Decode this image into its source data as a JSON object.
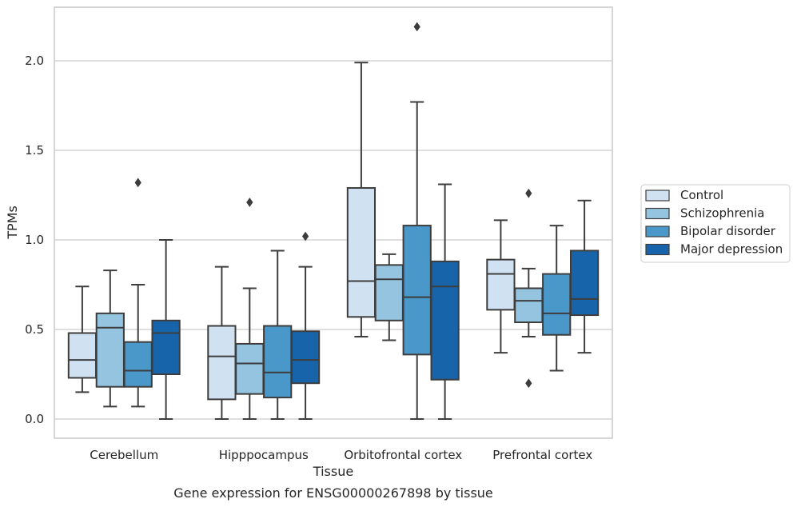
{
  "chart_data": {
    "type": "boxplot",
    "title": "Gene expression for ENSG00000267898 by tissue",
    "xlabel": "Tissue",
    "ylabel": "TPMs",
    "ylim": [
      -0.1,
      2.3
    ],
    "yticks": [
      0.0,
      0.5,
      1.0,
      1.5,
      2.0
    ],
    "ytick_labels": [
      "0.0",
      "0.5",
      "1.0",
      "1.5",
      "2.0"
    ],
    "grid": "horizontal",
    "legend_position": "right",
    "categories": [
      "Cerebellum",
      "Hipppocampus",
      "Orbitofrontal cortex",
      "Prefrontal cortex"
    ],
    "series": [
      {
        "name": "Control",
        "color": "#d0e1f2",
        "boxes": [
          {
            "whisker_low": 0.15,
            "q1": 0.23,
            "median": 0.33,
            "q3": 0.48,
            "whisker_high": 0.74,
            "outliers": []
          },
          {
            "whisker_low": 0.0,
            "q1": 0.11,
            "median": 0.35,
            "q3": 0.52,
            "whisker_high": 0.85,
            "outliers": []
          },
          {
            "whisker_low": 0.46,
            "q1": 0.57,
            "median": 0.77,
            "q3": 1.29,
            "whisker_high": 1.99,
            "outliers": []
          },
          {
            "whisker_low": 0.37,
            "q1": 0.61,
            "median": 0.81,
            "q3": 0.89,
            "whisker_high": 1.11,
            "outliers": []
          }
        ]
      },
      {
        "name": "Schizophrenia",
        "color": "#94c4df",
        "boxes": [
          {
            "whisker_low": 0.07,
            "q1": 0.18,
            "median": 0.51,
            "q3": 0.59,
            "whisker_high": 0.83,
            "outliers": []
          },
          {
            "whisker_low": 0.0,
            "q1": 0.14,
            "median": 0.31,
            "q3": 0.42,
            "whisker_high": 0.73,
            "outliers": [
              1.21
            ]
          },
          {
            "whisker_low": 0.44,
            "q1": 0.55,
            "median": 0.78,
            "q3": 0.86,
            "whisker_high": 0.92,
            "outliers": []
          },
          {
            "whisker_low": 0.46,
            "q1": 0.54,
            "median": 0.66,
            "q3": 0.73,
            "whisker_high": 0.84,
            "outliers": [
              1.26,
              0.2
            ]
          }
        ]
      },
      {
        "name": "Bipolar disorder",
        "color": "#4a98c9",
        "boxes": [
          {
            "whisker_low": 0.07,
            "q1": 0.18,
            "median": 0.27,
            "q3": 0.43,
            "whisker_high": 0.75,
            "outliers": [
              1.32
            ]
          },
          {
            "whisker_low": 0.0,
            "q1": 0.12,
            "median": 0.26,
            "q3": 0.52,
            "whisker_high": 0.94,
            "outliers": []
          },
          {
            "whisker_low": 0.0,
            "q1": 0.36,
            "median": 0.68,
            "q3": 1.08,
            "whisker_high": 1.77,
            "outliers": [
              2.19
            ]
          },
          {
            "whisker_low": 0.27,
            "q1": 0.47,
            "median": 0.59,
            "q3": 0.81,
            "whisker_high": 1.08,
            "outliers": []
          }
        ]
      },
      {
        "name": "Major depression",
        "color": "#1764ab",
        "boxes": [
          {
            "whisker_low": 0.0,
            "q1": 0.25,
            "median": 0.48,
            "q3": 0.55,
            "whisker_high": 1.0,
            "outliers": []
          },
          {
            "whisker_low": 0.0,
            "q1": 0.2,
            "median": 0.33,
            "q3": 0.49,
            "whisker_high": 0.85,
            "outliers": [
              1.02
            ]
          },
          {
            "whisker_low": 0.0,
            "q1": 0.22,
            "median": 0.74,
            "q3": 0.88,
            "whisker_high": 1.31,
            "outliers": []
          },
          {
            "whisker_low": 0.37,
            "q1": 0.58,
            "median": 0.67,
            "q3": 0.94,
            "whisker_high": 1.22,
            "outliers": []
          }
        ]
      }
    ]
  }
}
